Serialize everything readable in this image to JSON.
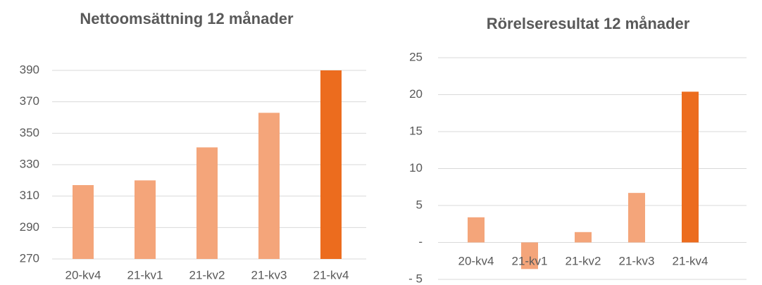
{
  "chart_data": [
    {
      "type": "bar",
      "title": "Nettoomsättning 12 månader",
      "categories": [
        "20-kv4",
        "21-kv1",
        "21-kv2",
        "21-kv3",
        "21-kv4"
      ],
      "values": [
        317,
        320,
        341,
        363,
        390
      ],
      "colors": [
        "#f4a57a",
        "#f4a57a",
        "#f4a57a",
        "#f4a57a",
        "#ec6c1e"
      ],
      "ylim": [
        270,
        390
      ],
      "yticks": [
        270,
        290,
        310,
        330,
        350,
        370,
        390
      ],
      "grid": true
    },
    {
      "type": "bar",
      "title": "Rörelseresultat 12 månader",
      "categories": [
        "20-kv4",
        "21-kv1",
        "21-kv2",
        "21-kv3",
        "21-kv4"
      ],
      "values": [
        3.4,
        -3.6,
        1.4,
        6.7,
        20.4
      ],
      "colors": [
        "#f4a57a",
        "#f4a57a",
        "#f4a57a",
        "#f4a57a",
        "#ec6c1e"
      ],
      "ylim": [
        -5,
        25
      ],
      "yticks": [
        {
          "value": -5,
          "label": "- 5"
        },
        {
          "value": 0,
          "label": "-"
        },
        5,
        10,
        15,
        20,
        25
      ],
      "grid": true
    }
  ]
}
